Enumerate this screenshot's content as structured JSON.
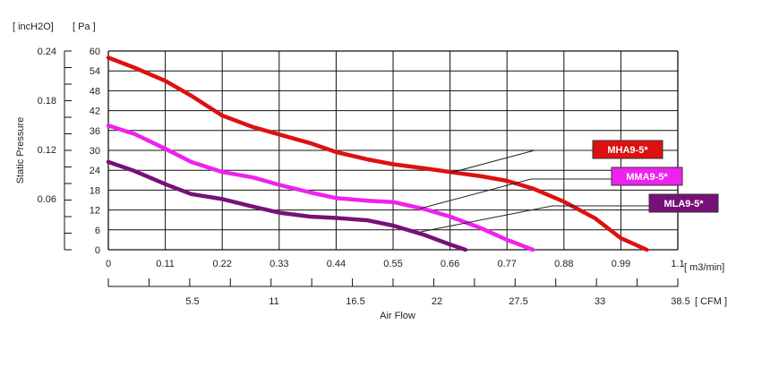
{
  "chart_data": {
    "type": "line",
    "xlabel": "Air  Flow",
    "ylabel": "Static Pressure",
    "x_unit_primary": "[ m3/min]",
    "x_unit_secondary": "[ CFM ]",
    "y_unit_primary": "[ Pa ]",
    "y_unit_secondary": "[ incH2O]",
    "xlim": [
      0,
      1.1
    ],
    "ylim": [
      0,
      60
    ],
    "x_ticks": [
      "0",
      "0.11",
      "0.22",
      "0.33",
      "0.44",
      "0.55",
      "0.66",
      "0.77",
      "0.88",
      "0.99",
      "1.1"
    ],
    "y_ticks": [
      "0",
      "6",
      "12",
      "18",
      "24",
      "30",
      "36",
      "42",
      "48",
      "54",
      "60"
    ],
    "cfm_ticks": [
      "5.5",
      "11",
      "16.5",
      "22",
      "27.5",
      "33",
      "38.5"
    ],
    "inch_ticks": [
      "0.06",
      "0.12",
      "0.18",
      "0.24"
    ],
    "grid": true,
    "series": [
      {
        "name": "MHA9-5*",
        "color": "#dd1111",
        "x": [
          0,
          0.05,
          0.11,
          0.16,
          0.22,
          0.28,
          0.33,
          0.39,
          0.44,
          0.5,
          0.55,
          0.61,
          0.66,
          0.72,
          0.77,
          0.82,
          0.88,
          0.94,
          0.99,
          1.04
        ],
        "y": [
          58,
          55,
          51,
          46.5,
          40.5,
          37,
          34.8,
          32.2,
          29.5,
          27.3,
          25.8,
          24.6,
          23.5,
          22.2,
          20.8,
          18.5,
          14.5,
          9.5,
          3.5,
          0
        ]
      },
      {
        "name": "MMA9-5*",
        "color": "#ee22ee",
        "x": [
          0,
          0.05,
          0.11,
          0.16,
          0.22,
          0.28,
          0.33,
          0.39,
          0.44,
          0.5,
          0.55,
          0.61,
          0.66,
          0.72,
          0.77,
          0.82
        ],
        "y": [
          37.5,
          35,
          30.5,
          26.5,
          23.5,
          21.8,
          19.6,
          17.3,
          15.6,
          14.8,
          14.4,
          12.3,
          10,
          6.5,
          3,
          0
        ]
      },
      {
        "name": "MLA9-5*",
        "color": "#771177",
        "x": [
          0,
          0.05,
          0.11,
          0.16,
          0.22,
          0.28,
          0.33,
          0.39,
          0.44,
          0.5,
          0.55,
          0.61,
          0.66,
          0.69
        ],
        "y": [
          26.5,
          23.8,
          19.8,
          16.8,
          15.3,
          13,
          11.2,
          10,
          9.6,
          8.9,
          7.3,
          4.5,
          1.6,
          0
        ]
      }
    ],
    "legend": [
      {
        "label": "MHA9-5*",
        "bg": "#dd1111"
      },
      {
        "label": "MMA9-5*",
        "bg": "#ee22ee"
      },
      {
        "label": "MLA9-5*",
        "bg": "#771177"
      }
    ]
  }
}
